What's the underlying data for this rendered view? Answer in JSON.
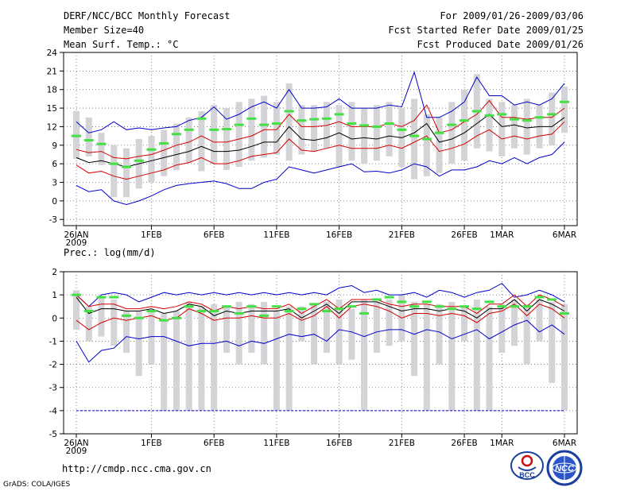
{
  "header": {
    "title": "DERF/NCC/BCC Monthly Forecast",
    "member_size": "Member Size=40",
    "variable": "Mean Surf. Temp.: °C",
    "period": "For 2009/01/26-2009/03/06",
    "fcst_started": "Fcst Started Refer Date 2009/01/25",
    "fcst_produced": "Fcst Produced Date 2009/01/26"
  },
  "footer": {
    "url": "http://cmdp.ncc.cma.gov.cn",
    "credit": "GrADS: COLA/IGES",
    "logo_left_text": "BCC",
    "logo_right_text": "NCC"
  },
  "colors": {
    "box": "#d3d3d8",
    "ens_mean": "#44e044",
    "median": "#000000",
    "quartile": "#d40000",
    "extreme": "#0000cc"
  },
  "chart_data": [
    {
      "type": "box-line",
      "title": "Mean Surf. Temp.: °C",
      "x_ticks": [
        "26JAN",
        "1FEB",
        "6FEB",
        "11FEB",
        "16FEB",
        "21FEB",
        "26FEB",
        "1MAR",
        "6MAR"
      ],
      "x_tick_days": [
        0,
        6,
        11,
        16,
        21,
        26,
        31,
        34,
        39
      ],
      "x_sublabel": "2009",
      "ylim": [
        -4,
        24
      ],
      "y_ticks": [
        -3,
        0,
        3,
        6,
        9,
        12,
        15,
        18,
        21,
        24
      ],
      "box_low": [
        6.8,
        7.2,
        5.8,
        0.6,
        0.6,
        2.0,
        3.0,
        4.0,
        5.0,
        6.2,
        4.8,
        6.0,
        5.0,
        5.5,
        6.5,
        7.0,
        7.5,
        6.5,
        7.5,
        8.0,
        8.5,
        5.5,
        6.5,
        6.0,
        6.5,
        7.2,
        5.5,
        3.5,
        4.0,
        4.5,
        6.0,
        6.5,
        8.5,
        8.0,
        7.2,
        8.5,
        7.5,
        8.5,
        9.0,
        11.0
      ],
      "box_high": [
        14.5,
        13.5,
        11.0,
        9.0,
        8.5,
        10.0,
        10.5,
        11.5,
        12.5,
        13.5,
        14.5,
        15.5,
        15.0,
        16.0,
        16.5,
        17.0,
        16.0,
        19.0,
        15.5,
        15.5,
        16.0,
        15.5,
        16.0,
        15.0,
        15.5,
        16.0,
        15.0,
        16.5,
        14.0,
        13.5,
        16.0,
        18.0,
        20.5,
        16.5,
        16.0,
        15.5,
        16.5,
        15.5,
        17.5,
        18.5
      ],
      "ens_mean": [
        10.5,
        9.8,
        9.2,
        6.0,
        5.5,
        6.5,
        8.3,
        9.3,
        10.8,
        11.5,
        13.3,
        11.5,
        11.6,
        12.3,
        13.3,
        12.3,
        12.5,
        14.5,
        13.0,
        13.2,
        13.3,
        14.0,
        12.5,
        12.2,
        12.0,
        12.5,
        11.5,
        10.5,
        10.0,
        11.0,
        12.3,
        13.0,
        14.5,
        13.8,
        14.0,
        13.2,
        13.0,
        13.5,
        14.0,
        16.0
      ],
      "median": [
        7.0,
        6.2,
        6.5,
        6.0,
        5.5,
        6.0,
        6.5,
        7.0,
        7.5,
        8.0,
        8.8,
        8.0,
        8.0,
        8.2,
        8.8,
        9.5,
        9.5,
        12.0,
        10.0,
        9.8,
        10.2,
        11.0,
        10.0,
        10.2,
        10.0,
        10.5,
        10.2,
        11.0,
        12.5,
        9.5,
        10.0,
        11.0,
        12.5,
        14.0,
        12.0,
        12.3,
        11.8,
        12.0,
        12.0,
        13.5
      ],
      "q_low": [
        5.8,
        4.5,
        4.8,
        4.0,
        3.5,
        4.0,
        4.5,
        5.0,
        5.8,
        6.2,
        7.0,
        6.0,
        6.0,
        6.5,
        7.2,
        7.5,
        7.8,
        10.0,
        8.2,
        8.0,
        8.5,
        9.0,
        8.5,
        8.5,
        8.5,
        9.0,
        8.5,
        9.5,
        10.5,
        8.0,
        8.5,
        9.2,
        10.5,
        11.5,
        10.0,
        10.5,
        10.0,
        10.5,
        10.8,
        12.8
      ],
      "q_high": [
        8.3,
        7.8,
        8.0,
        7.0,
        6.8,
        7.2,
        7.5,
        8.2,
        9.0,
        9.5,
        10.5,
        9.5,
        9.5,
        10.0,
        10.5,
        11.5,
        11.5,
        14.0,
        12.0,
        12.0,
        12.2,
        12.8,
        12.0,
        12.0,
        12.0,
        12.5,
        12.0,
        13.0,
        15.5,
        11.0,
        11.5,
        12.8,
        14.0,
        16.2,
        13.5,
        13.5,
        13.2,
        13.5,
        13.5,
        15.0
      ],
      "min": [
        2.5,
        1.5,
        1.8,
        0.0,
        -0.6,
        0.0,
        0.8,
        1.8,
        2.5,
        2.8,
        3.0,
        3.2,
        2.8,
        2.0,
        2.0,
        3.0,
        3.5,
        5.5,
        5.0,
        4.5,
        5.0,
        5.5,
        6.0,
        4.7,
        4.8,
        4.5,
        5.0,
        6.0,
        5.5,
        4.0,
        5.0,
        5.0,
        5.5,
        6.5,
        6.0,
        7.0,
        6.0,
        7.0,
        7.5,
        9.5
      ],
      "max": [
        12.8,
        11.0,
        11.5,
        12.8,
        11.5,
        11.8,
        11.5,
        11.8,
        12.0,
        13.0,
        13.5,
        15.2,
        13.2,
        14.0,
        15.2,
        16.0,
        15.0,
        18.0,
        15.0,
        15.0,
        15.2,
        16.5,
        15.0,
        15.0,
        15.0,
        15.5,
        15.2,
        20.8,
        13.5,
        13.5,
        14.5,
        16.0,
        20.0,
        17.0,
        17.0,
        15.5,
        16.0,
        15.5,
        16.5,
        19.0
      ]
    },
    {
      "type": "box-line",
      "title": "Prec.: log(mm/d)",
      "x_ticks": [
        "26JAN",
        "1FEB",
        "6FEB",
        "11FEB",
        "16FEB",
        "21FEB",
        "26FEB",
        "1MAR",
        "6MAR"
      ],
      "x_tick_days": [
        0,
        6,
        11,
        16,
        21,
        26,
        31,
        34,
        39
      ],
      "x_sublabel": "2009",
      "ylim": [
        -5,
        2
      ],
      "y_ticks": [
        -5,
        -4,
        -3,
        -2,
        -1,
        0,
        1,
        2
      ],
      "box_low": [
        -0.5,
        -1.0,
        -0.8,
        -1.2,
        -1.5,
        -2.5,
        -2.0,
        -4.0,
        -4.0,
        -4.0,
        -4.0,
        -4.0,
        -1.5,
        -2.0,
        -1.5,
        -2.0,
        -4.0,
        -4.0,
        -1.0,
        -2.0,
        -1.5,
        -2.0,
        -1.8,
        -4.0,
        -1.5,
        -1.2,
        -1.0,
        -2.5,
        -4.0,
        -2.0,
        -4.0,
        -1.0,
        -4.0,
        -4.0,
        -1.5,
        -1.2,
        -2.0,
        -1.0,
        -2.8,
        -4.0
      ],
      "box_high": [
        1.2,
        0.5,
        0.9,
        0.8,
        0.3,
        0.3,
        0.3,
        0.2,
        0.3,
        0.7,
        0.5,
        0.6,
        0.5,
        0.7,
        0.6,
        0.7,
        0.3,
        0.5,
        0.5,
        0.6,
        0.7,
        0.8,
        0.4,
        0.8,
        0.7,
        0.8,
        1.0,
        0.7,
        0.6,
        0.6,
        0.7,
        0.5,
        0.8,
        0.5,
        0.6,
        0.8,
        0.6,
        0.8,
        0.7,
        0.6
      ],
      "ens_mean": [
        1.0,
        0.3,
        0.9,
        0.9,
        0.1,
        0.0,
        0.3,
        -0.1,
        0.0,
        0.5,
        0.3,
        0.3,
        0.5,
        0.2,
        0.5,
        0.1,
        0.5,
        0.3,
        0.4,
        0.6,
        0.3,
        0.4,
        0.5,
        0.2,
        0.8,
        0.9,
        0.7,
        0.5,
        0.7,
        0.5,
        0.4,
        0.5,
        0.4,
        0.7,
        0.5,
        0.5,
        0.5,
        0.9,
        0.8,
        0.2
      ],
      "median": [
        0.9,
        0.2,
        0.4,
        0.4,
        0.3,
        0.3,
        0.4,
        0.2,
        0.3,
        0.6,
        0.5,
        0.1,
        0.3,
        0.2,
        0.3,
        0.3,
        0.3,
        0.4,
        0.0,
        0.3,
        0.6,
        0.2,
        0.7,
        0.7,
        0.7,
        0.5,
        0.3,
        0.4,
        0.4,
        0.3,
        0.4,
        0.3,
        0.0,
        0.4,
        0.4,
        0.8,
        0.3,
        0.8,
        0.6,
        0.3
      ],
      "q_low": [
        -0.1,
        -0.5,
        -0.2,
        0.0,
        -0.1,
        0.0,
        0.1,
        -0.1,
        0.0,
        0.4,
        0.2,
        -0.1,
        0.0,
        0.0,
        0.1,
        0.0,
        0.0,
        0.2,
        -0.1,
        0.1,
        0.5,
        0.0,
        0.5,
        0.6,
        0.5,
        0.3,
        0.0,
        0.2,
        0.2,
        0.1,
        0.2,
        0.1,
        -0.2,
        0.2,
        0.3,
        0.6,
        0.1,
        0.6,
        0.4,
        0.0
      ],
      "q_high": [
        1.0,
        0.5,
        0.6,
        0.6,
        0.4,
        0.4,
        0.5,
        0.4,
        0.5,
        0.7,
        0.6,
        0.3,
        0.5,
        0.4,
        0.5,
        0.4,
        0.4,
        0.6,
        0.2,
        0.5,
        0.8,
        0.4,
        0.8,
        0.8,
        0.8,
        0.6,
        0.5,
        0.6,
        0.6,
        0.5,
        0.5,
        0.5,
        0.2,
        0.6,
        0.6,
        1.0,
        0.5,
        1.0,
        0.8,
        0.5
      ],
      "min": [
        -1.0,
        -1.9,
        -1.4,
        -1.3,
        -0.8,
        -0.9,
        -0.8,
        -0.8,
        -1.0,
        -1.2,
        -1.1,
        -1.1,
        -1.0,
        -1.2,
        -1.0,
        -1.1,
        -0.9,
        -0.7,
        -0.8,
        -0.7,
        -1.0,
        -0.5,
        -0.6,
        -0.8,
        -0.6,
        -0.5,
        -0.5,
        -0.7,
        -0.5,
        -0.6,
        -0.9,
        -0.7,
        -0.5,
        -0.9,
        -0.6,
        -0.3,
        -0.1,
        -0.6,
        -0.3,
        -0.7
      ],
      "max": [
        1.0,
        0.5,
        1.0,
        1.1,
        1.0,
        0.7,
        0.9,
        1.1,
        1.0,
        1.1,
        1.0,
        1.1,
        1.0,
        1.1,
        1.0,
        1.1,
        1.0,
        1.1,
        1.0,
        1.1,
        1.0,
        1.3,
        1.4,
        1.1,
        1.2,
        1.0,
        1.0,
        1.1,
        0.9,
        1.2,
        1.1,
        0.9,
        1.1,
        1.2,
        1.5,
        0.9,
        1.0,
        1.2,
        1.0,
        0.7
      ],
      "floor": -4.0
    }
  ]
}
